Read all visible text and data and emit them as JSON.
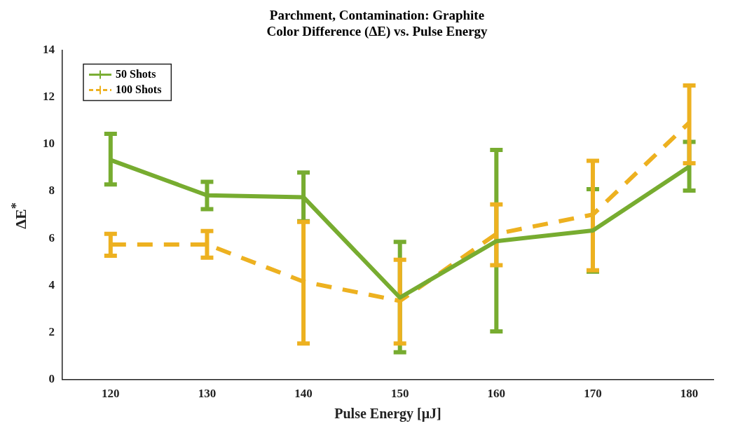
{
  "chart_data": {
    "type": "line",
    "title": [
      "Parchment, Contamination: Graphite",
      "Color Difference (ΔE) vs. Pulse Energy"
    ],
    "xlabel": "Pulse Energy [μJ]",
    "ylabel": "ΔE$^{*}$",
    "x": [
      120,
      130,
      140,
      150,
      160,
      170,
      180
    ],
    "series": [
      {
        "name": "50 Shots",
        "color": "#77ac30",
        "line_style": "solid",
        "values": [
          9.33,
          7.83,
          7.75,
          3.48,
          5.88,
          6.33,
          9.05
        ],
        "errors": [
          [
            8.29,
            10.44
          ],
          [
            7.24,
            8.4
          ],
          [
            6.73,
            8.8
          ],
          [
            1.16,
            5.85
          ],
          [
            2.04,
            9.76
          ],
          [
            4.58,
            8.09
          ],
          [
            8.03,
            10.1
          ]
        ]
      },
      {
        "name": "100 Shots",
        "color": "#edb120",
        "line_style": "dashed",
        "values": [
          5.74,
          5.74,
          4.16,
          3.34,
          6.19,
          7.01,
          10.92
        ],
        "errors": [
          [
            5.26,
            6.19
          ],
          [
            5.18,
            6.31
          ],
          [
            1.53,
            6.7
          ],
          [
            1.53,
            5.09
          ],
          [
            4.86,
            7.44
          ],
          [
            4.64,
            9.3
          ],
          [
            9.19,
            12.5
          ]
        ]
      }
    ],
    "xlim": [
      115,
      182.5
    ],
    "xticks": [
      120,
      130,
      140,
      150,
      160,
      170,
      180
    ],
    "ylim": [
      0,
      14
    ],
    "yticks": [
      0,
      2,
      4,
      6,
      8,
      10,
      12,
      14
    ],
    "grid": false,
    "legend": "top left",
    "marker": "none"
  }
}
